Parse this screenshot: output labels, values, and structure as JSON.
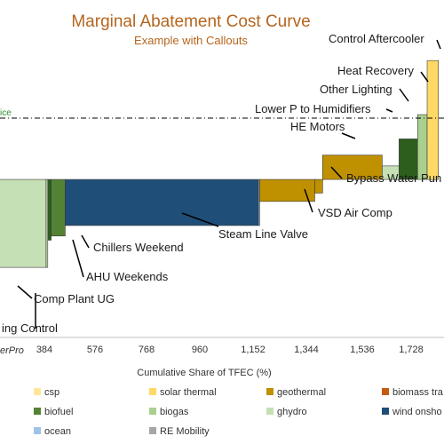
{
  "chart_data": {
    "type": "bar",
    "title": "Marginal Abatement Cost Curve",
    "subtitle": "Example with Callouts",
    "xlabel": "Cumulative  Share of TFEC (%)",
    "credit": "erPro",
    "price_label": "ice",
    "x_ticks": [
      "384",
      "576",
      "768",
      "960",
      "1,152",
      "1,344",
      "1,536",
      "1,728"
    ],
    "x_range": [
      300,
      1880
    ],
    "y_range": [
      -1.0,
      0.48
    ],
    "price_line": 0.0,
    "grid": false,
    "bars": [
      {
        "label": "ing Control",
        "x_start": 280,
        "x_end": 464,
        "value": -0.84,
        "color": "#c5e0b4"
      },
      {
        "label": "Comp Plant UG",
        "x_start": 464,
        "x_end": 470,
        "value": -0.84,
        "color": "#c5e0b4"
      },
      {
        "label": "AHU Weekends",
        "x_start": 470,
        "x_end": 482,
        "value": -0.58,
        "color": "#2e5e1e"
      },
      {
        "label": "Chillers Weekend",
        "x_start": 482,
        "x_end": 532,
        "value": -0.54,
        "color": "#548235"
      },
      {
        "label": "Steam Line Valve",
        "x_start": 532,
        "x_end": 1220,
        "value": -0.44,
        "color": "#1f4e79"
      },
      {
        "label": "",
        "x_start": 1220,
        "x_end": 1224,
        "value": -0.44,
        "color": "#9dc3e6"
      },
      {
        "label": "VSD Air Comp",
        "x_start": 1224,
        "x_end": 1420,
        "value": -0.21,
        "color": "#bf9000"
      },
      {
        "label": "Bypass Water Pun",
        "x_start": 1420,
        "x_end": 1448,
        "value": -0.13,
        "color": "#bf9000"
      },
      {
        "label": "HE Motors",
        "x_start": 1448,
        "x_end": 1660,
        "value": 0.09,
        "color": "#bf9000"
      },
      {
        "label": "Lower P to Humidifiers",
        "x_start": 1660,
        "x_end": 1720,
        "value": 0.05,
        "color": "#c5e0b4"
      },
      {
        "label": "Other Lighting",
        "x_start": 1720,
        "x_end": 1786,
        "value": 0.15,
        "color": "#2e5e1e"
      },
      {
        "label": "Heat Recovery",
        "x_start": 1786,
        "x_end": 1820,
        "value": 0.24,
        "color": "#a9d08e"
      },
      {
        "label": "Control Aftercooler",
        "x_start": 1820,
        "x_end": 1860,
        "value": 0.44,
        "color": "#ffd966"
      }
    ],
    "legend": [
      {
        "name": "csp",
        "color": "#ffe699"
      },
      {
        "name": "solar thermal",
        "color": "#ffd966"
      },
      {
        "name": "geothermal",
        "color": "#bf9000"
      },
      {
        "name": "biomass tra",
        "color": "#c55a11"
      },
      {
        "name": "biofuel",
        "color": "#548235"
      },
      {
        "name": "biogas",
        "color": "#a9d08e"
      },
      {
        "name": "ghydro",
        "color": "#c5e0b4"
      },
      {
        "name": "wind onsho",
        "color": "#1f4e79"
      },
      {
        "name": "ocean",
        "color": "#9dc3e6"
      },
      {
        "name": "RE Mobility",
        "color": "#a6a6a6"
      }
    ]
  }
}
